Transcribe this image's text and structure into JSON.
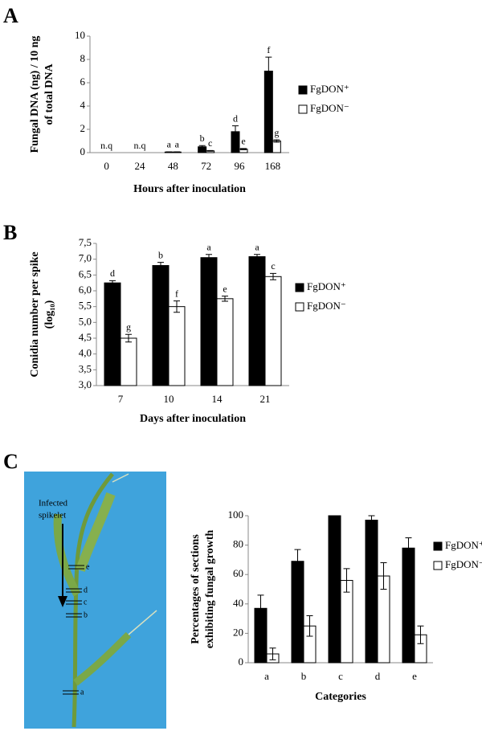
{
  "chart_data": [
    {
      "type": "bar",
      "panel": "A",
      "y_label": [
        "Fungal DNA (ng) / 10 ng",
        "of total DNA"
      ],
      "x_label": "Hours after inoculation",
      "categories": [
        "0",
        "24",
        "48",
        "72",
        "96",
        "168"
      ],
      "ylim": [
        0,
        10
      ],
      "yticks": [
        0,
        2,
        4,
        6,
        8,
        10
      ],
      "series": [
        {
          "name": "FgDON⁺",
          "color": "#000000",
          "values": [
            null,
            null,
            0.05,
            0.5,
            1.8,
            7.0
          ],
          "errors": [
            null,
            null,
            0.02,
            0.1,
            0.5,
            1.2
          ],
          "letters": [
            "n.q",
            "n.q",
            "a",
            "b",
            "d",
            "f"
          ]
        },
        {
          "name": "FgDON⁻",
          "color": "#ffffff",
          "values": [
            null,
            null,
            0.05,
            0.15,
            0.3,
            1.0
          ],
          "errors": [
            null,
            null,
            0.02,
            0.03,
            0.05,
            0.1
          ],
          "letters": [
            null,
            null,
            "a",
            "c",
            "e",
            "g"
          ]
        }
      ]
    },
    {
      "type": "bar",
      "panel": "B",
      "y_label": [
        "Conidia number per spike",
        "(log₁₀)"
      ],
      "x_label": "Days after inoculation",
      "categories": [
        "7",
        "10",
        "14",
        "21"
      ],
      "ylim": [
        3,
        7.5
      ],
      "yticks": [
        {
          "value": 3,
          "label": "3,0"
        },
        {
          "value": 3.5,
          "label": "3,5"
        },
        {
          "value": 4,
          "label": "4,0"
        },
        {
          "value": 4.5,
          "label": "4,5"
        },
        {
          "value": 5,
          "label": "5,0"
        },
        {
          "value": 5.5,
          "label": "5,5"
        },
        {
          "value": 6,
          "label": "6,0"
        },
        {
          "value": 6.5,
          "label": "6,5"
        },
        {
          "value": 7,
          "label": "7,0"
        },
        {
          "value": 7.5,
          "label": "7,5"
        }
      ],
      "series": [
        {
          "name": "FgDON⁺",
          "color": "#000000",
          "values": [
            6.25,
            6.8,
            7.05,
            7.08
          ],
          "errors": [
            0.07,
            0.1,
            0.1,
            0.07
          ],
          "letters": [
            "d",
            "b",
            "a",
            "a"
          ]
        },
        {
          "name": "FgDON⁻",
          "color": "#ffffff",
          "values": [
            4.5,
            5.5,
            5.75,
            6.45
          ],
          "errors": [
            0.12,
            0.18,
            0.08,
            0.1
          ],
          "letters": [
            "g",
            "f",
            "e",
            "c"
          ]
        }
      ]
    },
    {
      "type": "bar",
      "panel": "C",
      "y_label": [
        "Percentages of sections",
        "exhibiting fungal growth"
      ],
      "x_label": "Categories",
      "categories": [
        "a",
        "b",
        "c",
        "d",
        "e"
      ],
      "ylim": [
        0,
        100
      ],
      "yticks": [
        0,
        20,
        40,
        60,
        80,
        100
      ],
      "series": [
        {
          "name": "FgDON⁺",
          "color": "#000000",
          "values": [
            37,
            69,
            100,
            97,
            78
          ],
          "errors": [
            9,
            8,
            0,
            3,
            7
          ]
        },
        {
          "name": "FgDON⁻",
          "color": "#ffffff",
          "values": [
            6,
            25,
            56,
            59,
            19
          ],
          "errors": [
            4,
            7,
            8,
            9,
            6
          ]
        }
      ]
    }
  ],
  "photo": {
    "annotation": [
      "Infected",
      "spikelet"
    ],
    "markers": [
      "e",
      "d",
      "c",
      "b",
      "a"
    ]
  }
}
